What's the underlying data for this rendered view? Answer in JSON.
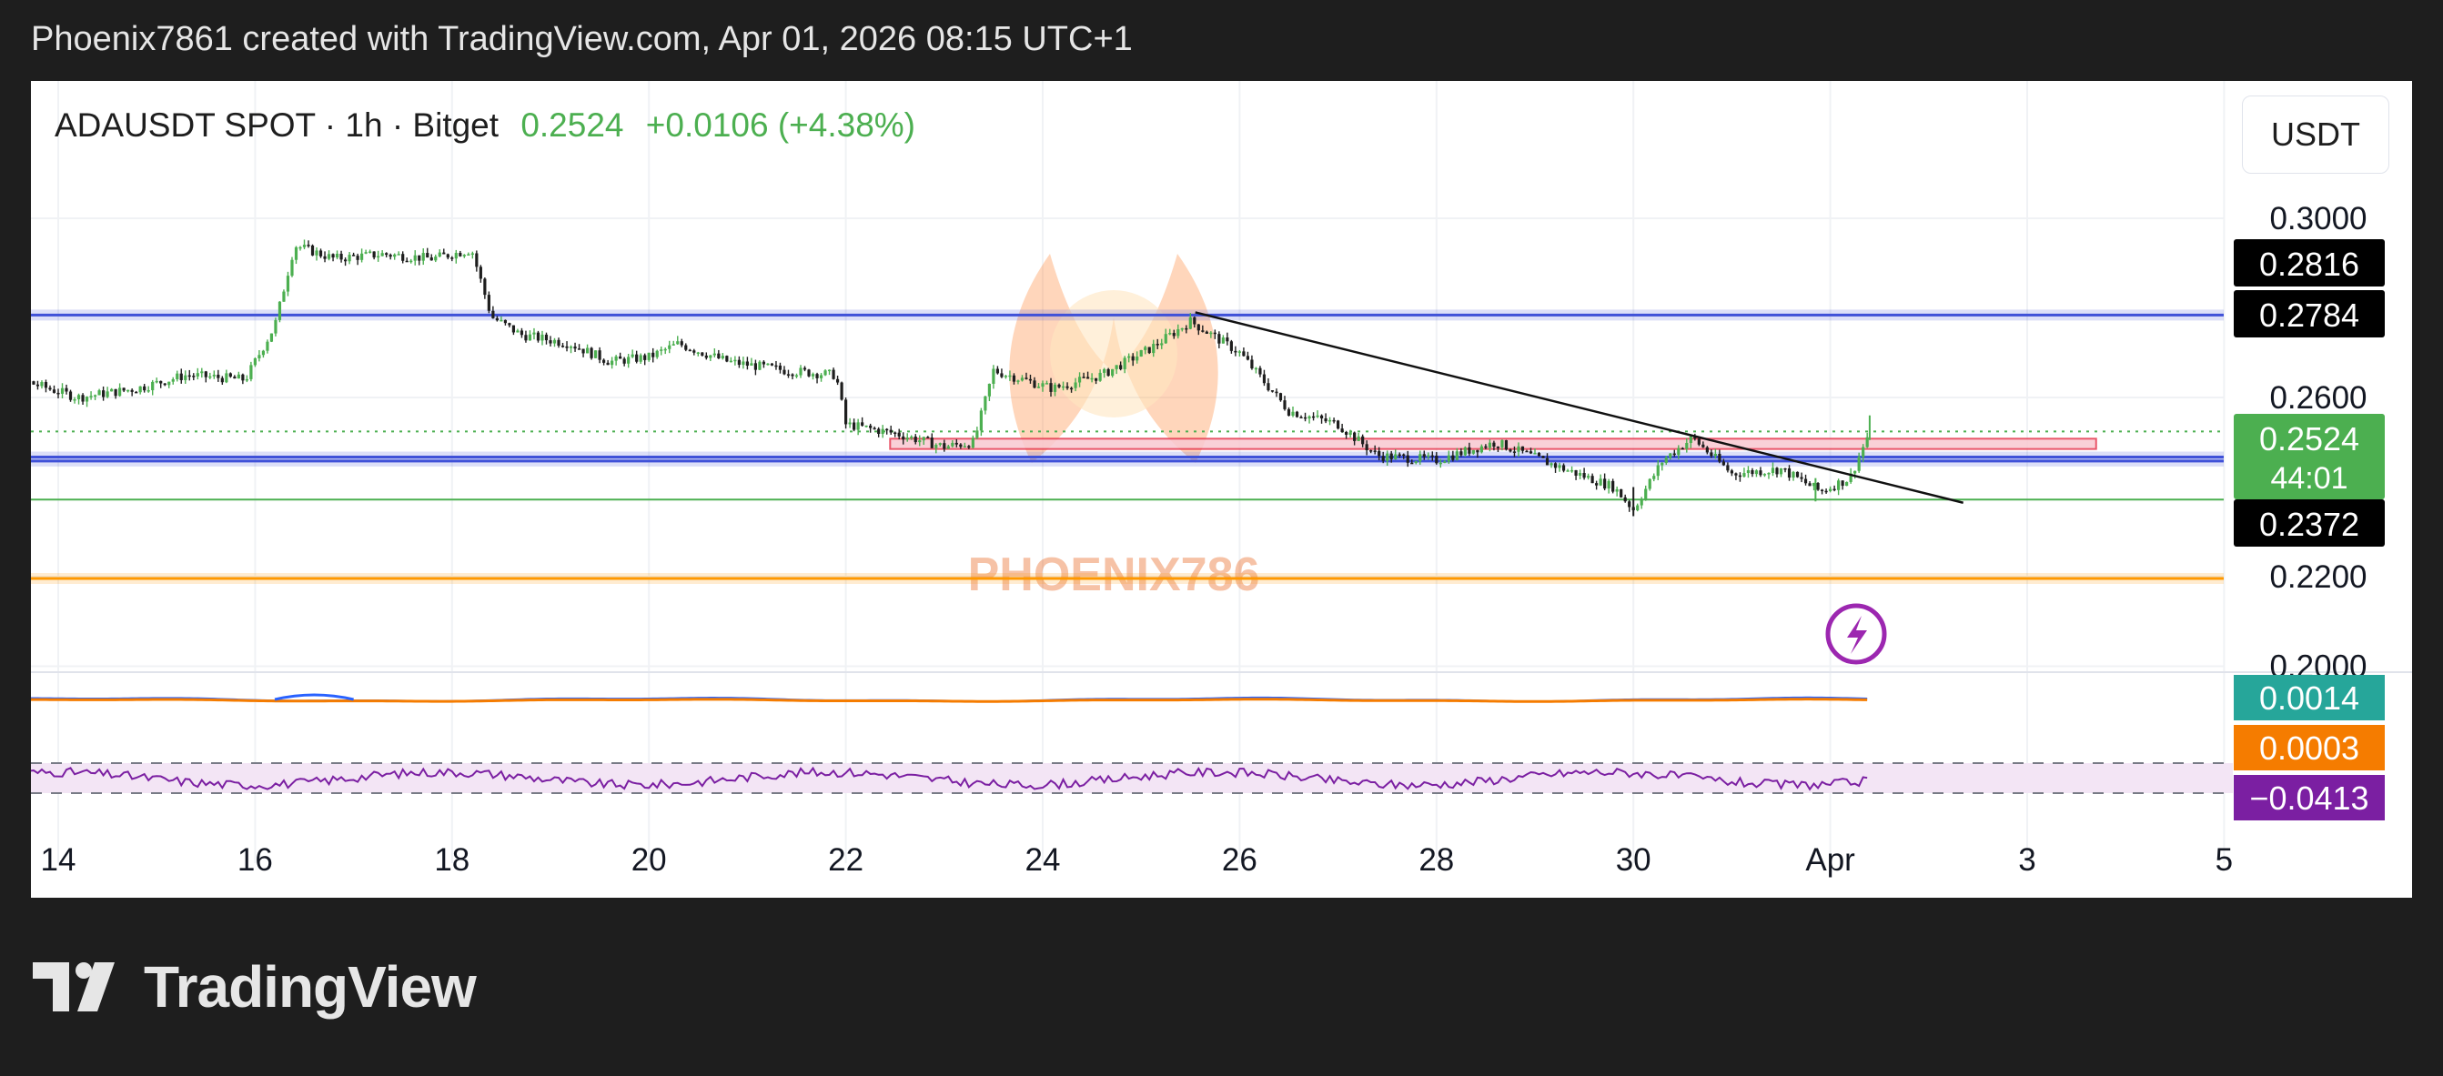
{
  "header": {
    "attribution": "Phoenix7861 created with TradingView.com, Apr 01, 2026 08:15 UTC+1"
  },
  "symbol": {
    "name": "ADAUSDT SPOT",
    "interval": "1h",
    "exchange": "Bitget",
    "price": "0.2524",
    "change": "+0.0106 (+4.38%)",
    "sep1": "·",
    "sep2": "·"
  },
  "currency_button": "USDT",
  "watermark": "PHOENIX786",
  "footer": {
    "brand": "TradingView"
  },
  "colors": {
    "up": "#4caf50",
    "down": "#1e1e1e",
    "blue_level": "#3f51d8",
    "orange_level": "#ff9800",
    "green_level": "#4caf50",
    "zone_fill": "#f8c8d0",
    "zone_stroke": "#e53950",
    "macd_line": "#2962ff",
    "signal_line": "#f57c00",
    "rsi_line": "#7b1fa2",
    "rsi_band": "#f3e5f5"
  },
  "chart_data": [
    {
      "type": "candlestick",
      "x_ticks": [
        "14",
        "16",
        "18",
        "20",
        "22",
        "24",
        "26",
        "28",
        "30",
        "Apr",
        "3",
        "5"
      ],
      "y_ticks": [
        "0.3000",
        "0.2600",
        "0.2200",
        "0.2000"
      ],
      "ylim": [
        0.196,
        0.308
      ],
      "price_labels": [
        {
          "value": "0.2816",
          "bg": "#000000",
          "fg": "#ffffff"
        },
        {
          "value": "0.2784",
          "bg": "#000000",
          "fg": "#ffffff"
        },
        {
          "value": "0.2524",
          "bg": "#4caf50",
          "fg": "#ffffff",
          "countdown": "44:01"
        },
        {
          "value": "0.2372",
          "bg": "#000000",
          "fg": "#ffffff"
        }
      ],
      "levels": [
        {
          "price": 0.2784,
          "color": "blue"
        },
        {
          "price": 0.2467,
          "color": "blue"
        },
        {
          "price": 0.2458,
          "color": "blue"
        },
        {
          "price": 0.2372,
          "color": "green"
        },
        {
          "price": 0.2196,
          "color": "orange"
        }
      ],
      "current_price": 0.2524,
      "zone": {
        "x_from": 22.45,
        "x_to": 34.7,
        "y_from": 0.2508,
        "y_to": 0.2485
      },
      "trendline": {
        "x1": 25.55,
        "y1": 0.279,
        "x2": 33.35,
        "y2": 0.2365
      },
      "close_path": [
        [
          13.0,
          0.268
        ],
        [
          13.6,
          0.264
        ],
        [
          14.2,
          0.26
        ],
        [
          14.8,
          0.262
        ],
        [
          15.3,
          0.265
        ],
        [
          15.9,
          0.264
        ],
        [
          16.2,
          0.276
        ],
        [
          16.4,
          0.294
        ],
        [
          16.8,
          0.291
        ],
        [
          17.3,
          0.292
        ],
        [
          17.8,
          0.291
        ],
        [
          18.2,
          0.293
        ],
        [
          18.4,
          0.278
        ],
        [
          18.7,
          0.274
        ],
        [
          19.2,
          0.272
        ],
        [
          19.6,
          0.268
        ],
        [
          20.0,
          0.269
        ],
        [
          20.3,
          0.272
        ],
        [
          20.8,
          0.268
        ],
        [
          21.4,
          0.266
        ],
        [
          21.9,
          0.265
        ],
        [
          22.0,
          0.254
        ],
        [
          22.5,
          0.252
        ],
        [
          23.0,
          0.249
        ],
        [
          23.3,
          0.25
        ],
        [
          23.5,
          0.266
        ],
        [
          24.1,
          0.262
        ],
        [
          24.6,
          0.265
        ],
        [
          25.1,
          0.271
        ],
        [
          25.5,
          0.277
        ],
        [
          26.0,
          0.27
        ],
        [
          26.5,
          0.257
        ],
        [
          27.0,
          0.254
        ],
        [
          27.4,
          0.247
        ],
        [
          28.0,
          0.246
        ],
        [
          28.6,
          0.25
        ],
        [
          29.3,
          0.244
        ],
        [
          29.8,
          0.24
        ],
        [
          30.0,
          0.235
        ],
        [
          30.3,
          0.246
        ],
        [
          30.6,
          0.251
        ],
        [
          31.0,
          0.243
        ],
        [
          31.5,
          0.244
        ],
        [
          31.9,
          0.239
        ],
        [
          32.2,
          0.242
        ],
        [
          32.4,
          0.2524
        ]
      ]
    },
    {
      "type": "line",
      "name": "oscillator",
      "labels": [
        {
          "value": "0.0014",
          "bg": "#26a69a"
        },
        {
          "value": "0.0003",
          "bg": "#f57c00"
        }
      ]
    },
    {
      "type": "line",
      "name": "oscillator-2",
      "labels": [
        {
          "value": "−0.0413",
          "bg": "#7b1fa2"
        }
      ]
    }
  ]
}
